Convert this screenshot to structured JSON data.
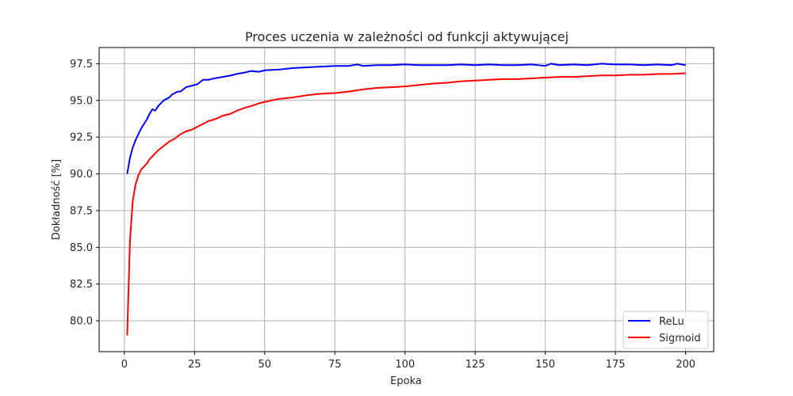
{
  "chart_data": {
    "type": "line",
    "title": "Proces uczenia w zależności od funkcji aktywującej",
    "xlabel": "Epoka",
    "ylabel": "Dokładność [%]",
    "xlim": [
      -9,
      210
    ],
    "ylim": [
      77.9,
      98.6
    ],
    "xticks": [
      0,
      25,
      50,
      75,
      100,
      125,
      150,
      175,
      200
    ],
    "yticks": [
      80.0,
      82.5,
      85.0,
      87.5,
      90.0,
      92.5,
      95.0,
      97.5
    ],
    "grid": true,
    "legend_position": "lower right",
    "series": [
      {
        "name": "ReLu",
        "color": "#0000ff",
        "points": [
          [
            1,
            90.0
          ],
          [
            2,
            91.1
          ],
          [
            3,
            91.8
          ],
          [
            4,
            92.3
          ],
          [
            5,
            92.7
          ],
          [
            6,
            93.1
          ],
          [
            7,
            93.4
          ],
          [
            8,
            93.7
          ],
          [
            9,
            94.1
          ],
          [
            10,
            94.4
          ],
          [
            11,
            94.3
          ],
          [
            12,
            94.6
          ],
          [
            13,
            94.8
          ],
          [
            14,
            95.0
          ],
          [
            15,
            95.1
          ],
          [
            16,
            95.2
          ],
          [
            17,
            95.4
          ],
          [
            18,
            95.5
          ],
          [
            19,
            95.6
          ],
          [
            20,
            95.6
          ],
          [
            22,
            95.9
          ],
          [
            24,
            96.0
          ],
          [
            26,
            96.1
          ],
          [
            28,
            96.4
          ],
          [
            30,
            96.4
          ],
          [
            32,
            96.5
          ],
          [
            35,
            96.6
          ],
          [
            38,
            96.7
          ],
          [
            40,
            96.8
          ],
          [
            43,
            96.9
          ],
          [
            45,
            97.0
          ],
          [
            48,
            96.95
          ],
          [
            50,
            97.05
          ],
          [
            55,
            97.1
          ],
          [
            60,
            97.2
          ],
          [
            65,
            97.25
          ],
          [
            70,
            97.3
          ],
          [
            75,
            97.35
          ],
          [
            80,
            97.35
          ],
          [
            83,
            97.45
          ],
          [
            85,
            97.35
          ],
          [
            90,
            97.4
          ],
          [
            95,
            97.4
          ],
          [
            100,
            97.45
          ],
          [
            105,
            97.4
          ],
          [
            110,
            97.4
          ],
          [
            115,
            97.4
          ],
          [
            120,
            97.45
          ],
          [
            125,
            97.4
          ],
          [
            130,
            97.45
          ],
          [
            135,
            97.4
          ],
          [
            140,
            97.4
          ],
          [
            145,
            97.45
          ],
          [
            150,
            97.35
          ],
          [
            152,
            97.5
          ],
          [
            155,
            97.4
          ],
          [
            160,
            97.45
          ],
          [
            165,
            97.4
          ],
          [
            170,
            97.5
          ],
          [
            175,
            97.45
          ],
          [
            180,
            97.45
          ],
          [
            185,
            97.4
          ],
          [
            190,
            97.45
          ],
          [
            195,
            97.4
          ],
          [
            197,
            97.5
          ],
          [
            200,
            97.4
          ]
        ]
      },
      {
        "name": "Sigmoid",
        "color": "#ff0000",
        "points": [
          [
            1,
            79.0
          ],
          [
            2,
            85.5
          ],
          [
            3,
            88.2
          ],
          [
            4,
            89.3
          ],
          [
            5,
            89.9
          ],
          [
            6,
            90.3
          ],
          [
            7,
            90.5
          ],
          [
            8,
            90.7
          ],
          [
            9,
            91.0
          ],
          [
            10,
            91.2
          ],
          [
            11,
            91.4
          ],
          [
            12,
            91.6
          ],
          [
            14,
            91.9
          ],
          [
            16,
            92.2
          ],
          [
            18,
            92.4
          ],
          [
            20,
            92.7
          ],
          [
            22,
            92.9
          ],
          [
            24,
            93.0
          ],
          [
            26,
            93.2
          ],
          [
            28,
            93.4
          ],
          [
            30,
            93.6
          ],
          [
            32,
            93.7
          ],
          [
            35,
            93.95
          ],
          [
            38,
            94.1
          ],
          [
            40,
            94.3
          ],
          [
            43,
            94.5
          ],
          [
            45,
            94.6
          ],
          [
            48,
            94.8
          ],
          [
            50,
            94.9
          ],
          [
            55,
            95.1
          ],
          [
            60,
            95.2
          ],
          [
            65,
            95.35
          ],
          [
            70,
            95.45
          ],
          [
            75,
            95.5
          ],
          [
            80,
            95.6
          ],
          [
            85,
            95.75
          ],
          [
            90,
            95.85
          ],
          [
            95,
            95.9
          ],
          [
            100,
            95.95
          ],
          [
            105,
            96.05
          ],
          [
            110,
            96.15
          ],
          [
            115,
            96.2
          ],
          [
            120,
            96.3
          ],
          [
            125,
            96.35
          ],
          [
            130,
            96.4
          ],
          [
            135,
            96.45
          ],
          [
            140,
            96.45
          ],
          [
            145,
            96.5
          ],
          [
            150,
            96.55
          ],
          [
            155,
            96.6
          ],
          [
            160,
            96.6
          ],
          [
            165,
            96.65
          ],
          [
            170,
            96.7
          ],
          [
            175,
            96.7
          ],
          [
            180,
            96.75
          ],
          [
            185,
            96.75
          ],
          [
            190,
            96.8
          ],
          [
            195,
            96.8
          ],
          [
            200,
            96.85
          ]
        ]
      }
    ]
  }
}
